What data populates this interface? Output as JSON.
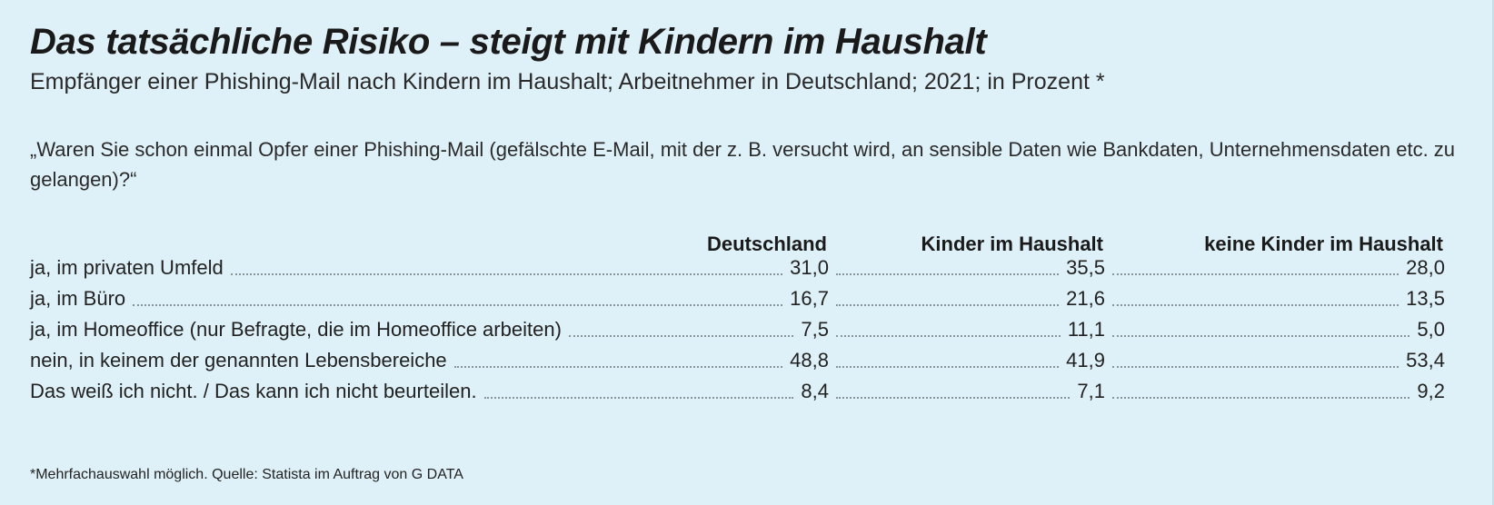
{
  "title": "Das tatsächliche Risiko – steigt mit Kindern im Haushalt",
  "subtitle": "Empfänger einer Phishing-Mail nach Kindern im Haushalt; Arbeitnehmer in Deutschland; 2021; in Prozent *",
  "question": "„Waren Sie schon einmal Opfer einer Phishing-Mail (gefälschte E-Mail, mit der z. B. versucht wird, an sensible Daten wie Bankdaten, Unternehmensdaten etc. zu gelangen)?“",
  "footnote": "*Mehrfachauswahl möglich. Quelle: Statista im Auftrag von G DATA",
  "colors": {
    "background": "#dff1f8",
    "text": "#1a1a1a",
    "leader_dots": "#8a959a"
  },
  "chart_data": {
    "type": "table",
    "columns": [
      "Deutschland",
      "Kinder im Haushalt",
      "keine Kinder im Haushalt"
    ],
    "rows": [
      {
        "label": "ja, im privaten Umfeld",
        "values": [
          "31,0",
          "35,5",
          "28,0"
        ]
      },
      {
        "label": "ja, im Büro",
        "values": [
          "16,7",
          "21,6",
          "13,5"
        ]
      },
      {
        "label": "ja, im Homeoffice (nur Befragte, die im Homeoffice arbeiten)",
        "values": [
          "7,5",
          "11,1",
          "5,0"
        ]
      },
      {
        "label": "nein, in keinem der genannten Lebensbereiche",
        "values": [
          "48,8",
          "41,9",
          "53,4"
        ]
      },
      {
        "label": "Das weiß ich nicht. / Das kann ich nicht beurteilen.",
        "values": [
          "8,4",
          "7,1",
          "9,2"
        ]
      }
    ]
  }
}
